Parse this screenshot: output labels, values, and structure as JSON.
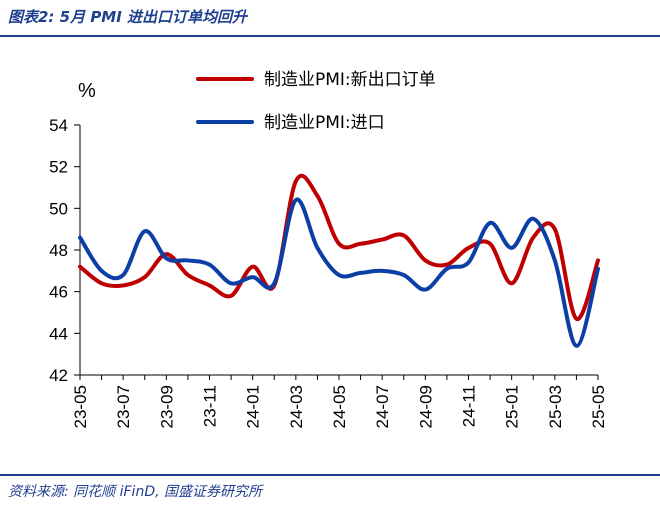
{
  "figure": {
    "title": "图表2:  5月 PMI 进出口订单均回升",
    "source": "资料来源: 同花顺 iFinD, 国盛证券研究所"
  },
  "chart_data": {
    "type": "line",
    "ylabel": "%",
    "ylim": [
      42,
      54
    ],
    "yticks": [
      42,
      44,
      46,
      48,
      50,
      52,
      54
    ],
    "x": [
      "23-05",
      "23-06",
      "23-07",
      "23-08",
      "23-09",
      "23-10",
      "23-11",
      "23-12",
      "24-01",
      "24-02",
      "24-03",
      "24-04",
      "24-05",
      "24-06",
      "24-07",
      "24-08",
      "24-09",
      "24-10",
      "24-11",
      "24-12",
      "25-01",
      "25-02",
      "25-03",
      "25-04",
      "25-05"
    ],
    "xtick_labels": [
      "23-05",
      "23-07",
      "23-09",
      "23-11",
      "24-01",
      "24-03",
      "24-05",
      "24-07",
      "24-09",
      "24-11",
      "25-01",
      "25-03",
      "25-05"
    ],
    "grid": false,
    "legend_position": "top",
    "series": [
      {
        "name": "制造业PMI:新出口订单",
        "color": "#c00000",
        "values": [
          47.2,
          46.4,
          46.3,
          46.7,
          47.8,
          46.8,
          46.3,
          45.8,
          47.2,
          46.3,
          51.3,
          50.6,
          48.3,
          48.3,
          48.5,
          48.7,
          47.5,
          47.3,
          48.1,
          48.3,
          46.4,
          48.6,
          49.0,
          44.7,
          47.5
        ]
      },
      {
        "name": "制造业PMI:进口",
        "color": "#0b3fa6",
        "values": [
          48.6,
          47.0,
          46.8,
          48.9,
          47.6,
          47.5,
          47.3,
          46.4,
          46.7,
          46.4,
          50.4,
          48.1,
          46.8,
          46.9,
          47.0,
          46.8,
          46.1,
          47.1,
          47.4,
          49.3,
          48.1,
          49.5,
          47.5,
          43.4,
          47.1
        ]
      }
    ]
  }
}
